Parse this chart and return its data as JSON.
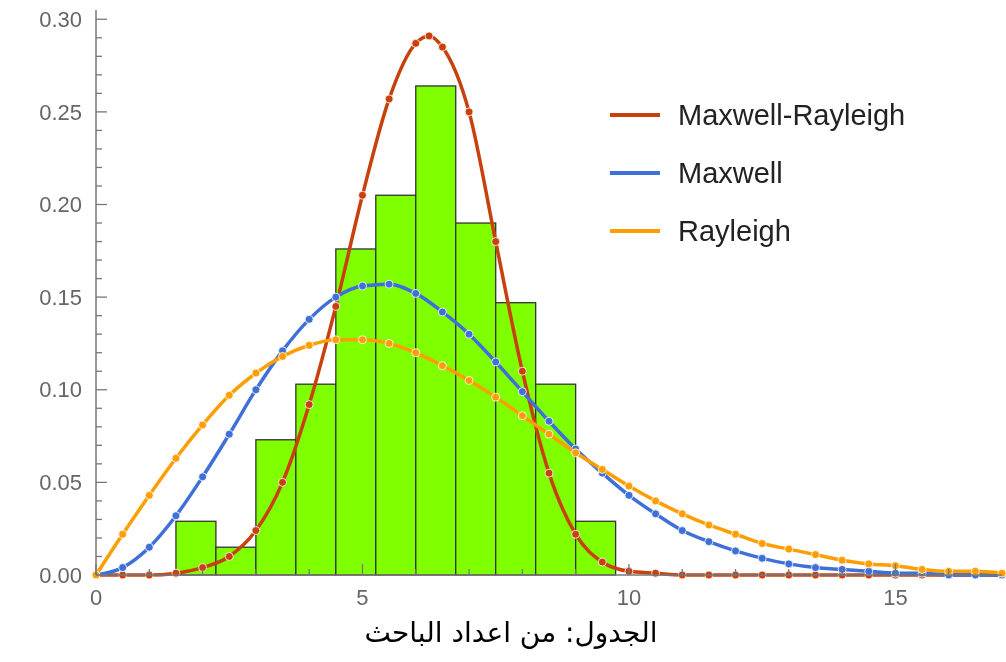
{
  "chart_data": {
    "type": "histogram",
    "bins": [
      1.5,
      2.25,
      3.0,
      3.75,
      4.5,
      5.25,
      6.0,
      6.75,
      7.5,
      8.25,
      9.0,
      9.75
    ],
    "values": [
      0.029,
      0.015,
      0.073,
      0.103,
      0.176,
      0.205,
      0.264,
      0.19,
      0.147,
      0.103,
      0.029
    ],
    "color": "#80ff00",
    "series": [
      {
        "name": "Maxwell-Rayleigh",
        "type": "line",
        "color": "#c8400c",
        "x": [
          0,
          0.5,
          1,
          1.5,
          2,
          2.5,
          3,
          3.5,
          4,
          4.5,
          5,
          5.5,
          6,
          6.25,
          6.5,
          7,
          7.5,
          8,
          8.5,
          9,
          9.5,
          10,
          10.5,
          11,
          11.5,
          12,
          12.5,
          13,
          13.5,
          14,
          14.5,
          15,
          15.5,
          16,
          16.5,
          17
        ],
        "values": [
          0,
          0,
          0,
          0.001,
          0.004,
          0.01,
          0.024,
          0.05,
          0.092,
          0.145,
          0.205,
          0.257,
          0.287,
          0.291,
          0.285,
          0.25,
          0.18,
          0.11,
          0.055,
          0.022,
          0.007,
          0.002,
          0.001,
          0,
          0,
          0,
          0,
          0,
          0,
          0,
          0,
          0,
          0,
          0,
          0,
          0
        ]
      },
      {
        "name": "Maxwell",
        "type": "line",
        "color": "#3f6fd8",
        "x": [
          0,
          0.5,
          1,
          1.5,
          2,
          2.5,
          3,
          3.5,
          4,
          4.5,
          5,
          5.5,
          6,
          6.5,
          7,
          7.5,
          8,
          8.5,
          9,
          9.5,
          10,
          10.5,
          11,
          11.5,
          12,
          12.5,
          13,
          13.5,
          14,
          14.5,
          15,
          15.5,
          16,
          16.5,
          17
        ],
        "values": [
          0,
          0.004,
          0.015,
          0.032,
          0.053,
          0.076,
          0.1,
          0.121,
          0.138,
          0.15,
          0.156,
          0.157,
          0.152,
          0.142,
          0.13,
          0.115,
          0.099,
          0.083,
          0.068,
          0.055,
          0.043,
          0.033,
          0.024,
          0.018,
          0.013,
          0.009,
          0.006,
          0.004,
          0.003,
          0.002,
          0.001,
          0.001,
          0.0,
          0.0,
          0.0
        ]
      },
      {
        "name": "Rayleigh",
        "type": "line",
        "color": "#ff9e00",
        "x": [
          0,
          0.5,
          1,
          1.5,
          2,
          2.5,
          3,
          3.5,
          4,
          4.5,
          5,
          5.5,
          6,
          6.5,
          7,
          7.5,
          8,
          8.5,
          9,
          9.5,
          10,
          10.5,
          11,
          11.5,
          12,
          12.5,
          13,
          13.5,
          14,
          14.5,
          15,
          15.5,
          16,
          16.5,
          17
        ],
        "values": [
          0,
          0.022,
          0.043,
          0.063,
          0.081,
          0.097,
          0.109,
          0.118,
          0.124,
          0.127,
          0.127,
          0.125,
          0.12,
          0.113,
          0.105,
          0.096,
          0.086,
          0.076,
          0.066,
          0.057,
          0.048,
          0.04,
          0.033,
          0.027,
          0.022,
          0.017,
          0.014,
          0.011,
          0.008,
          0.006,
          0.005,
          0.003,
          0.002,
          0.002,
          0.001
        ]
      }
    ],
    "xlim": [
      0,
      17
    ],
    "xticks": [
      0,
      {
        "value": 1,
        "label": null
      },
      {
        "value": 2,
        "label": null
      },
      {
        "value": 3,
        "label": null
      },
      {
        "value": 4,
        "label": null
      },
      5,
      {
        "value": 6,
        "label": null
      },
      {
        "value": 7,
        "label": null
      },
      {
        "value": 8,
        "label": null
      },
      {
        "value": 9,
        "label": null
      },
      10,
      {
        "value": 11,
        "label": null
      },
      {
        "value": 12,
        "label": null
      },
      {
        "value": 13,
        "label": null
      },
      {
        "value": 14,
        "label": null
      },
      15,
      {
        "value": 16,
        "label": null
      }
    ],
    "ylim": [
      0,
      0.305
    ],
    "yticks": [
      {
        "value": 0,
        "label": "0.00"
      },
      {
        "value": 0.01,
        "label": null
      },
      {
        "value": 0.02,
        "label": null
      },
      {
        "value": 0.03,
        "label": null
      },
      {
        "value": 0.04,
        "label": null
      },
      {
        "value": 0.05,
        "label": "0.05"
      },
      {
        "value": 0.06,
        "label": null
      },
      {
        "value": 0.07,
        "label": null
      },
      {
        "value": 0.08,
        "label": null
      },
      {
        "value": 0.09,
        "label": null
      },
      {
        "value": 0.1,
        "label": "0.10"
      },
      {
        "value": 0.11,
        "label": null
      },
      {
        "value": 0.12,
        "label": null
      },
      {
        "value": 0.13,
        "label": null
      },
      {
        "value": 0.14,
        "label": null
      },
      {
        "value": 0.15,
        "label": "0.15"
      },
      {
        "value": 0.16,
        "label": null
      },
      {
        "value": 0.17,
        "label": null
      },
      {
        "value": 0.18,
        "label": null
      },
      {
        "value": 0.19,
        "label": null
      },
      {
        "value": 0.2,
        "label": "0.20"
      },
      {
        "value": 0.21,
        "label": null
      },
      {
        "value": 0.22,
        "label": null
      },
      {
        "value": 0.23,
        "label": null
      },
      {
        "value": 0.24,
        "label": null
      },
      {
        "value": 0.25,
        "label": "0.25"
      },
      {
        "value": 0.26,
        "label": null
      },
      {
        "value": 0.27,
        "label": null
      },
      {
        "value": 0.28,
        "label": null
      },
      {
        "value": 0.29,
        "label": null
      },
      {
        "value": 0.3,
        "label": "0.30"
      }
    ],
    "grid": false,
    "legend": "top right",
    "marker": "circle",
    "annotations": [
      "الجدول: من اعداد الباحث"
    ]
  }
}
